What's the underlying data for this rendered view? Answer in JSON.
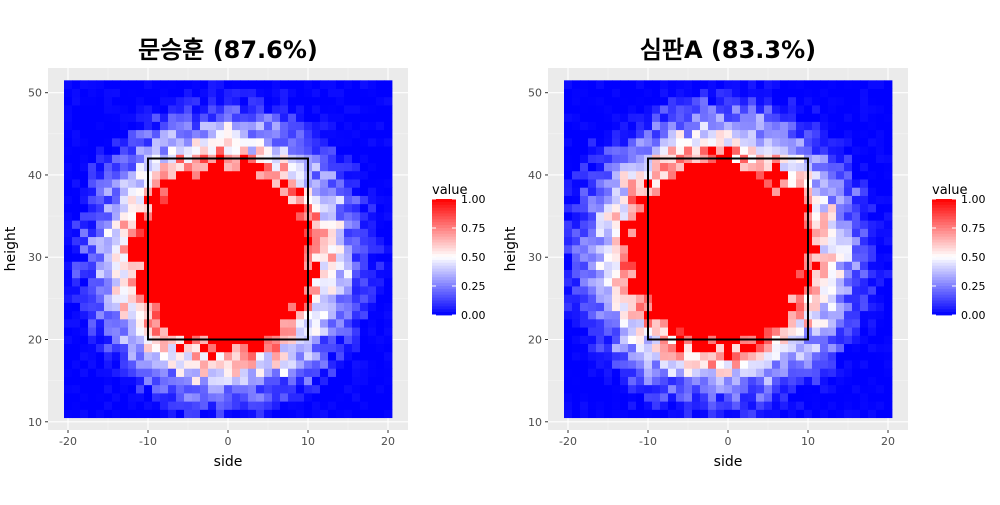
{
  "chart_data": [
    {
      "type": "heatmap",
      "title": "문승훈 (87.6%)",
      "xlabel": "side",
      "ylabel": "height",
      "xlim": [
        -22.5,
        22.5
      ],
      "ylim": [
        9,
        53
      ],
      "x_ticks": [
        -20,
        -10,
        0,
        10,
        20
      ],
      "y_ticks": [
        10,
        20,
        30,
        40,
        50
      ],
      "x_tick_labels": [
        "-20",
        "-10",
        "0",
        "10",
        "20"
      ],
      "y_tick_labels": [
        "10",
        "20",
        "30",
        "40",
        "50"
      ],
      "grid": true,
      "data_extent": {
        "x": [
          -20.5,
          20.5
        ],
        "y": [
          10.5,
          51.5
        ]
      },
      "strike_zone": {
        "x": [
          -10,
          10
        ],
        "y": [
          20,
          42
        ]
      },
      "hot_region": {
        "center_x": -0.5,
        "center_y": 30,
        "radius_x": 12,
        "radius_y": 12.5,
        "peak": 1.0
      },
      "legend": {
        "title": "value",
        "position": "right",
        "breaks": [
          1.0,
          0.75,
          0.5,
          0.25,
          0.0
        ],
        "break_labels": [
          "1.00",
          "0.75",
          "0.50",
          "0.25",
          "0.00"
        ]
      }
    },
    {
      "type": "heatmap",
      "title": "심판A (83.3%)",
      "xlabel": "side",
      "ylabel": "height",
      "xlim": [
        -22.5,
        22.5
      ],
      "ylim": [
        9,
        53
      ],
      "x_ticks": [
        -20,
        -10,
        0,
        10,
        20
      ],
      "y_ticks": [
        10,
        20,
        30,
        40,
        50
      ],
      "x_tick_labels": [
        "-20",
        "-10",
        "0",
        "10",
        "20"
      ],
      "y_tick_labels": [
        "10",
        "20",
        "30",
        "40",
        "50"
      ],
      "grid": true,
      "data_extent": {
        "x": [
          -20.5,
          20.5
        ],
        "y": [
          10.5,
          51.5
        ]
      },
      "strike_zone": {
        "x": [
          -10,
          10
        ],
        "y": [
          20,
          42
        ]
      },
      "hot_region": {
        "center_x": -1,
        "center_y": 30.5,
        "radius_x": 12.5,
        "radius_y": 12.5,
        "peak": 1.0
      },
      "legend": {
        "title": "value",
        "position": "right",
        "breaks": [
          1.0,
          0.75,
          0.5,
          0.25,
          0.0
        ],
        "break_labels": [
          "1.00",
          "0.75",
          "0.50",
          "0.25",
          "0.00"
        ]
      }
    }
  ],
  "colors": {
    "low": "#0000ff",
    "mid": "#ffffff",
    "high": "#ff0000",
    "panel_background": "#ebebeb",
    "grid_major": "#ffffff",
    "grid_minor": "#f4f4f4",
    "strike_zone": "#000000"
  }
}
